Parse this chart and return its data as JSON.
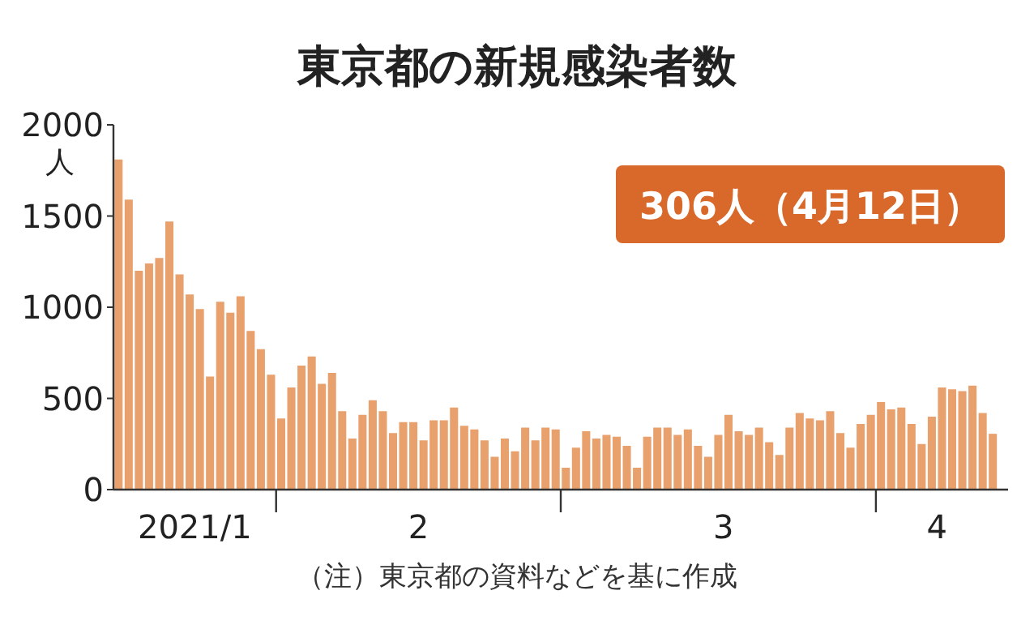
{
  "chart_data": {
    "type": "bar",
    "title": "東京都の新規感染者数",
    "ylabel": "人",
    "x": [
      "2021-01-16",
      "2021-01-17",
      "2021-01-18",
      "2021-01-19",
      "2021-01-20",
      "2021-01-21",
      "2021-01-22",
      "2021-01-23",
      "2021-01-24",
      "2021-01-25",
      "2021-01-26",
      "2021-01-27",
      "2021-01-28",
      "2021-01-29",
      "2021-01-30",
      "2021-01-31",
      "2021-02-01",
      "2021-02-02",
      "2021-02-03",
      "2021-02-04",
      "2021-02-05",
      "2021-02-06",
      "2021-02-07",
      "2021-02-08",
      "2021-02-09",
      "2021-02-10",
      "2021-02-11",
      "2021-02-12",
      "2021-02-13",
      "2021-02-14",
      "2021-02-15",
      "2021-02-16",
      "2021-02-17",
      "2021-02-18",
      "2021-02-19",
      "2021-02-20",
      "2021-02-21",
      "2021-02-22",
      "2021-02-23",
      "2021-02-24",
      "2021-02-25",
      "2021-02-26",
      "2021-02-27",
      "2021-02-28",
      "2021-03-01",
      "2021-03-02",
      "2021-03-03",
      "2021-03-04",
      "2021-03-05",
      "2021-03-06",
      "2021-03-07",
      "2021-03-08",
      "2021-03-09",
      "2021-03-10",
      "2021-03-11",
      "2021-03-12",
      "2021-03-13",
      "2021-03-14",
      "2021-03-15",
      "2021-03-16",
      "2021-03-17",
      "2021-03-18",
      "2021-03-19",
      "2021-03-20",
      "2021-03-21",
      "2021-03-22",
      "2021-03-23",
      "2021-03-24",
      "2021-03-25",
      "2021-03-26",
      "2021-03-27",
      "2021-03-28",
      "2021-03-29",
      "2021-03-30",
      "2021-03-31",
      "2021-04-01",
      "2021-04-02",
      "2021-04-03",
      "2021-04-04",
      "2021-04-05",
      "2021-04-06",
      "2021-04-07",
      "2021-04-08",
      "2021-04-09",
      "2021-04-10",
      "2021-04-11",
      "2021-04-12"
    ],
    "values": [
      1810,
      1590,
      1200,
      1240,
      1270,
      1470,
      1180,
      1070,
      990,
      620,
      1030,
      970,
      1060,
      870,
      770,
      630,
      390,
      560,
      680,
      730,
      580,
      640,
      430,
      280,
      410,
      490,
      430,
      310,
      370,
      370,
      270,
      380,
      380,
      450,
      350,
      330,
      270,
      180,
      280,
      210,
      340,
      270,
      340,
      330,
      120,
      230,
      320,
      280,
      300,
      290,
      240,
      120,
      290,
      340,
      340,
      300,
      330,
      240,
      180,
      300,
      410,
      320,
      300,
      340,
      260,
      190,
      340,
      420,
      390,
      380,
      430,
      310,
      230,
      360,
      410,
      480,
      440,
      450,
      360,
      250,
      400,
      560,
      550,
      540,
      570,
      420,
      306
    ],
    "color": "#e8a06c",
    "xlim": [
      "2021-01-15T12:00",
      "2021-04-13T12:00"
    ],
    "xticks": [
      {
        "value": "2021-01-23T12:00",
        "label": "2021/1"
      },
      {
        "value": "2021-01-31T12:00",
        "label": null
      },
      {
        "value": "2021-02-14T12:00",
        "label": "2"
      },
      {
        "value": "2021-02-28T12:00",
        "label": null
      },
      {
        "value": "2021-03-16T12:00",
        "label": "3"
      },
      {
        "value": "2021-03-31T12:00",
        "label": null
      },
      {
        "value": "2021-04-06T12:00",
        "label": "4"
      }
    ],
    "ylim": [
      0,
      2000
    ],
    "yticks": [
      0,
      500,
      1000,
      1500,
      2000
    ],
    "annotations": [
      "306人（4月12日）",
      "（注）東京都の資料などを基に作成"
    ]
  }
}
